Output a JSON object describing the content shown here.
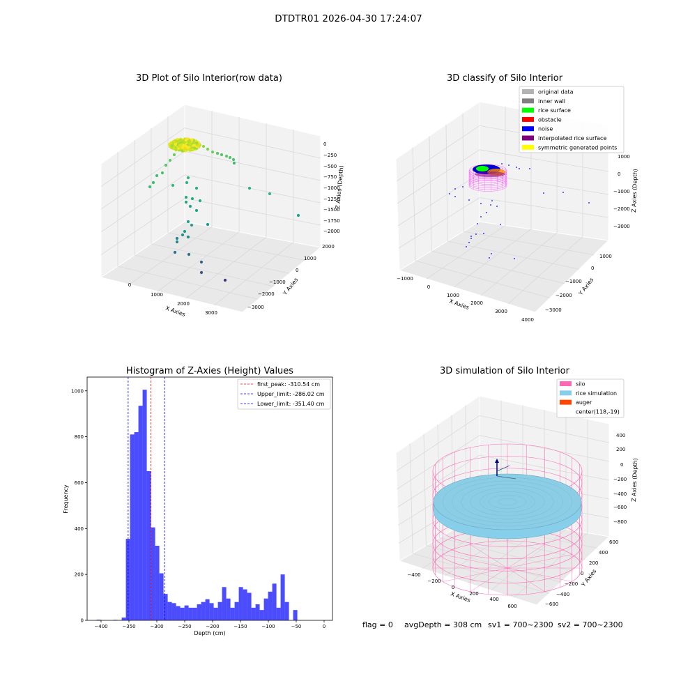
{
  "figure": {
    "suptitle": "DTDTR01 2026-04-30 17:24:07",
    "footer": {
      "flag": "flag = 0",
      "avg_depth": "avgDepth = 308 cm",
      "sv1": "sv1 = 700~2300",
      "sv2": "sv2 = 700~2300"
    }
  },
  "chart_data": [
    {
      "id": "raw3d",
      "type": "scatter",
      "title": "3D Plot of Silo Interior(row data)",
      "xlabel": "X Axies",
      "ylabel": "Y Axies",
      "zlabel": "Z Axies (Depth)",
      "x_ticks": [
        "0",
        "1000",
        "2000",
        "3000"
      ],
      "y_ticks": [
        "2000",
        "1000",
        "0",
        "−1000",
        "−2000",
        "−3000"
      ],
      "z_ticks": [
        "0",
        "−250",
        "−500",
        "−750",
        "−1000",
        "−1250",
        "−1500",
        "−1750",
        "−2000"
      ],
      "colormap": "viridis"
    },
    {
      "id": "classify3d",
      "type": "scatter",
      "title": "3D classify of Silo Interior",
      "xlabel": "X Axies",
      "ylabel": "Y Axies",
      "zlabel": "Z Axies (Depth)",
      "x_ticks": [
        "−1000",
        "0",
        "1000",
        "2000",
        "3000",
        "4000"
      ],
      "y_ticks": [
        "1000",
        "0",
        "−1000",
        "−2000",
        "−3000"
      ],
      "z_ticks": [
        "1000",
        "0",
        "−1000",
        "−2000",
        "−3000"
      ],
      "legend": [
        {
          "label": "original data",
          "color": "#b3b3b3"
        },
        {
          "label": "inner wall",
          "color": "#808080"
        },
        {
          "label": "rice surface",
          "color": "#00ff00"
        },
        {
          "label": "obstacle",
          "color": "#ff0000"
        },
        {
          "label": "noise",
          "color": "#0000ff"
        },
        {
          "label": "interpolated rice surface",
          "color": "#800080"
        },
        {
          "label": "symmetric generated points",
          "color": "#ffff00"
        }
      ],
      "legend_loc": "upper right"
    },
    {
      "id": "hist",
      "type": "bar",
      "title": "Histogram of Z-Axies (Height) Values",
      "xlabel": "Depth (cm)",
      "ylabel": "Frequency",
      "xlim": [
        -425,
        15
      ],
      "ylim": [
        0,
        1060
      ],
      "x_ticks": [
        -400,
        -350,
        -300,
        -250,
        -200,
        -150,
        -100,
        -50,
        0
      ],
      "y_ticks": [
        0,
        200,
        400,
        600,
        800,
        1000
      ],
      "bar_color": "#0000ff",
      "bin_width": 7.5,
      "bin_start": -408,
      "counts": [
        3,
        0,
        0,
        0,
        2,
        0,
        12,
        355,
        810,
        820,
        935,
        1005,
        650,
        405,
        325,
        205,
        115,
        80,
        75,
        62,
        55,
        65,
        55,
        55,
        70,
        80,
        92,
        75,
        55,
        80,
        145,
        95,
        55,
        80,
        145,
        135,
        120,
        55,
        70,
        45,
        95,
        125,
        160,
        55,
        200,
        80,
        0,
        45
      ],
      "reference_lines": [
        {
          "label": "first_peak: -310.54 cm",
          "value": -310.54,
          "color": "#ff0000"
        },
        {
          "label": "Upper_limit: -286.02 cm",
          "value": -286.02,
          "color": "#0000ff"
        },
        {
          "label": "Lower_limit: -351.40 cm",
          "value": -351.4,
          "color": "#0000ff"
        }
      ],
      "legend_loc": "upper right"
    },
    {
      "id": "sim3d",
      "type": "scatter",
      "title": "3D simulation of Silo Interior",
      "xlabel": "X Axies",
      "ylabel": "Y Axies",
      "zlabel": "Z Axies (Depth)",
      "x_ticks": [
        "−400",
        "−200",
        "0",
        "200",
        "400",
        "600"
      ],
      "y_ticks": [
        "600",
        "400",
        "200",
        "0",
        "−200",
        "−400",
        "−600"
      ],
      "z_ticks": [
        "400",
        "200",
        "0",
        "−200",
        "−400",
        "−600",
        "−800"
      ],
      "legend": [
        {
          "label": "silo",
          "color": "#ff69b4"
        },
        {
          "label": "rice simulation",
          "color": "#87ceeb"
        },
        {
          "label": "auger",
          "color": "#ff4500"
        },
        {
          "label": "center(118,-19)",
          "color": ""
        }
      ],
      "legend_loc": "upper right"
    }
  ]
}
